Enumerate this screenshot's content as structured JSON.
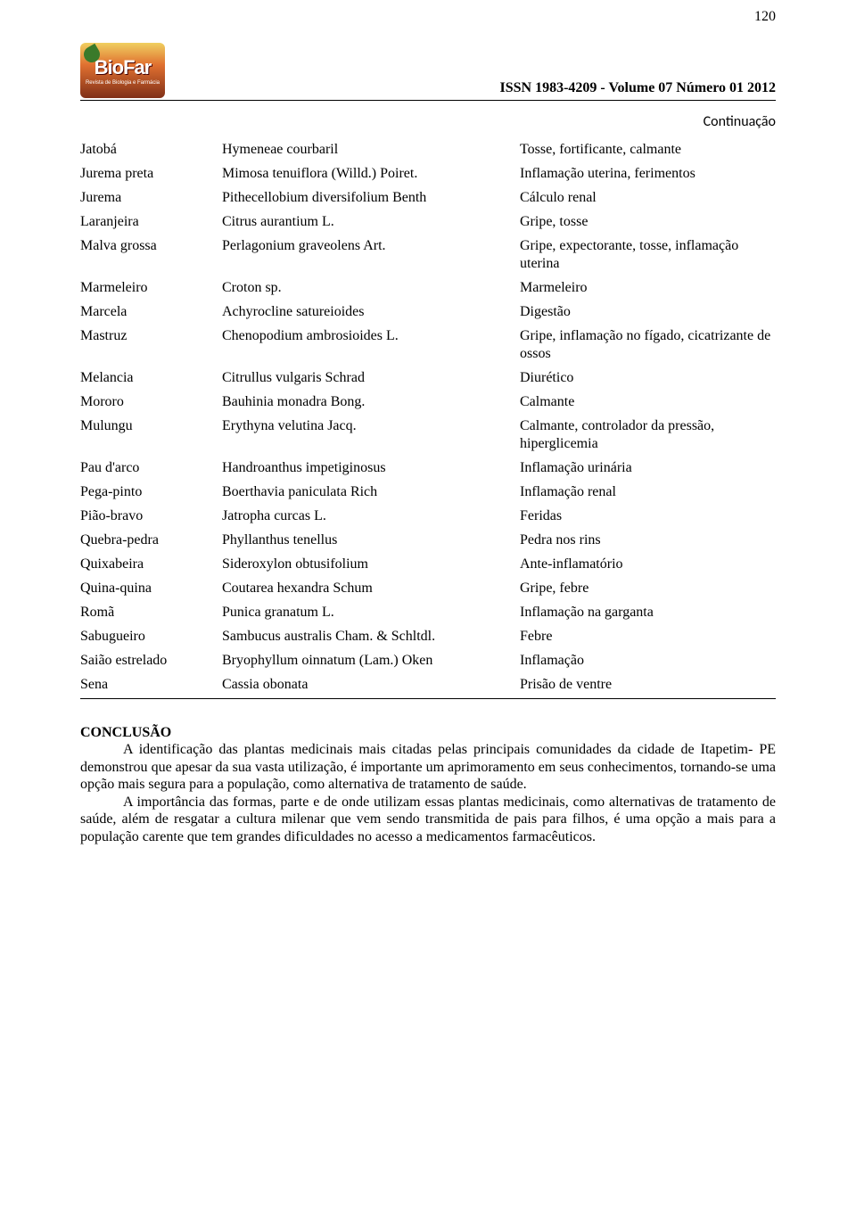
{
  "page_number": "120",
  "issn_line": "ISSN 1983-4209 - Volume 07 Número 01 2012",
  "logo": {
    "main": "BioFar",
    "sub": "Revista de Biologia e Farmácia"
  },
  "continuation": "Continuação",
  "table": {
    "rows": [
      {
        "c1": "Jatobá",
        "c2": "Hymeneae courbaril",
        "c3": "Tosse, fortificante, calmante"
      },
      {
        "c1": "Jurema preta",
        "c2": "Mimosa tenuiflora (Willd.) Poiret.",
        "c3": "Inflamação uterina, ferimentos"
      },
      {
        "c1": "Jurema",
        "c2": "Pithecellobium diversifolium Benth",
        "c3": "Cálculo renal"
      },
      {
        "c1": "Laranjeira",
        "c2": "Citrus aurantium L.",
        "c3": "Gripe, tosse"
      },
      {
        "c1": "Malva grossa",
        "c2": "Perlagonium graveolens Art.",
        "c3": "Gripe, expectorante, tosse, inflamação uterina"
      },
      {
        "c1": "Marmeleiro",
        "c2": "Croton sp.",
        "c3": "Marmeleiro"
      },
      {
        "c1": "Marcela",
        "c2": "Achyrocline satureioides",
        "c3": "Digestão"
      },
      {
        "c1": "Mastruz",
        "c2": "Chenopodium ambrosioides L.",
        "c3": "Gripe, inflamação no fígado, cicatrizante de ossos"
      },
      {
        "c1": "Melancia",
        "c2": "Citrullus vulgaris Schrad",
        "c3": "Diurético"
      },
      {
        "c1": "Mororo",
        "c2": "Bauhinia monadra Bong.",
        "c3": "Calmante"
      },
      {
        "c1": "Mulungu",
        "c2": "Erythyna velutina Jacq.",
        "c3": "Calmante, controlador da pressão, hiperglicemia"
      },
      {
        "c1": "Pau d'arco",
        "c2": "Handroanthus impetiginosus",
        "c3": "Inflamação urinária"
      },
      {
        "c1": "Pega-pinto",
        "c2": "Boerthavia paniculata Rich",
        "c3": "Inflamação renal"
      },
      {
        "c1": "Pião-bravo",
        "c2": "Jatropha curcas L.",
        "c3": "Feridas"
      },
      {
        "c1": "Quebra-pedra",
        "c2": "Phyllanthus tenellus",
        "c3": "Pedra nos rins"
      },
      {
        "c1": "Quixabeira",
        "c2": "Sideroxylon obtusifolium",
        "c3": "Ante-inflamatório"
      },
      {
        "c1": "Quina-quina",
        "c2": "Coutarea hexandra Schum",
        "c3": "Gripe, febre"
      },
      {
        "c1": "Romã",
        "c2": "Punica granatum L.",
        "c3": "Inflamação na garganta"
      },
      {
        "c1": "Sabugueiro",
        "c2": "Sambucus australis Cham. & Schltdl.",
        "c3": "Febre"
      },
      {
        "c1": "Saião estrelado",
        "c2": "Bryophyllum oinnatum  (Lam.) Oken",
        "c3": "Inflamação"
      },
      {
        "c1": "Sena",
        "c2": "Cassia obonata",
        "c3": "Prisão de ventre"
      }
    ]
  },
  "conclusion": {
    "title": "CONCLUSÃO",
    "p1": "A identificação das plantas medicinais mais citadas pelas principais comunidades da cidade de Itapetim- PE demonstrou que apesar da sua vasta utilização, é importante um aprimoramento em seus conhecimentos, tornando-se uma opção mais segura para a população, como alternativa de tratamento de saúde.",
    "p2": "A importância das formas, parte e de onde utilizam essas plantas medicinais, como alternativas de tratamento de saúde, além de resgatar a cultura milenar que vem sendo transmitida de pais para filhos, é uma opção a mais para a população carente que tem grandes dificuldades no acesso a medicamentos farmacêuticos."
  }
}
